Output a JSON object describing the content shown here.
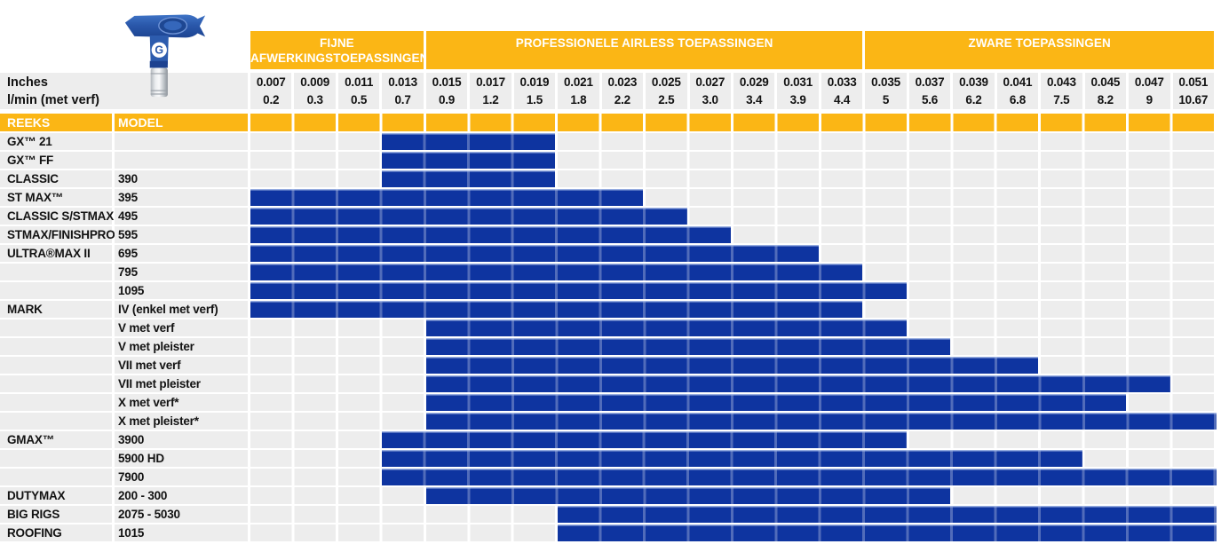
{
  "colors": {
    "accent_orange": "#FBB615",
    "bar_blue": "#0E34A0",
    "row_gray": "#EDEDED",
    "band_text": "#FFFFFF",
    "label_text": "#121212"
  },
  "chart_data": {
    "type": "bar",
    "subtype": "horizontal-range-selection-chart",
    "legend": "none",
    "grid": "column-separators",
    "row_headers": {
      "reeks": "REEKS",
      "model": "MODEL"
    },
    "x_axis": {
      "label_inches": "Inches",
      "label_lmin": "l/min (met verf)",
      "ticks_inches": [
        0.007,
        0.009,
        0.011,
        0.013,
        0.015,
        0.017,
        0.019,
        0.021,
        0.023,
        0.025,
        0.027,
        0.029,
        0.031,
        0.033,
        0.035,
        0.037,
        0.039,
        0.041,
        0.043,
        0.045,
        0.047,
        0.051
      ],
      "ticks_lmin": [
        0.2,
        0.3,
        0.5,
        0.7,
        0.9,
        1.2,
        1.5,
        1.8,
        2.2,
        2.5,
        3.0,
        3.4,
        3.9,
        4.4,
        5,
        5.6,
        6.2,
        6.8,
        7.5,
        8.2,
        9,
        10.67
      ]
    },
    "bands": [
      {
        "label": "FIJNE AFWERKINGSTOEPASSINGEN",
        "cols": [
          0,
          3
        ]
      },
      {
        "label": "PROFESSIONELE AIRLESS TOEPASSINGEN",
        "cols": [
          4,
          13
        ]
      },
      {
        "label": "ZWARE TOEPASSINGEN",
        "cols": [
          14,
          21
        ]
      }
    ],
    "columns": [
      {
        "inches": "0.007",
        "lmin": "0.2"
      },
      {
        "inches": "0.009",
        "lmin": "0.3"
      },
      {
        "inches": "0.011",
        "lmin": "0.5"
      },
      {
        "inches": "0.013",
        "lmin": "0.7"
      },
      {
        "inches": "0.015",
        "lmin": "0.9"
      },
      {
        "inches": "0.017",
        "lmin": "1.2"
      },
      {
        "inches": "0.019",
        "lmin": "1.5"
      },
      {
        "inches": "0.021",
        "lmin": "1.8"
      },
      {
        "inches": "0.023",
        "lmin": "2.2"
      },
      {
        "inches": "0.025",
        "lmin": "2.5"
      },
      {
        "inches": "0.027",
        "lmin": "3.0"
      },
      {
        "inches": "0.029",
        "lmin": "3.4"
      },
      {
        "inches": "0.031",
        "lmin": "3.9"
      },
      {
        "inches": "0.033",
        "lmin": "4.4"
      },
      {
        "inches": "0.035",
        "lmin": "5"
      },
      {
        "inches": "0.037",
        "lmin": "5.6"
      },
      {
        "inches": "0.039",
        "lmin": "6.2"
      },
      {
        "inches": "0.041",
        "lmin": "6.8"
      },
      {
        "inches": "0.043",
        "lmin": "7.5"
      },
      {
        "inches": "0.045",
        "lmin": "8.2"
      },
      {
        "inches": "0.047",
        "lmin": "9"
      },
      {
        "inches": "0.051",
        "lmin": "10.67"
      }
    ],
    "rows": [
      {
        "reeks": "GX™ 21",
        "model": "",
        "from": "0.013",
        "to": "0.019"
      },
      {
        "reeks": "GX™ FF",
        "model": "",
        "from": "0.013",
        "to": "0.019"
      },
      {
        "reeks": "CLASSIC",
        "model": "390",
        "from": "0.013",
        "to": "0.019"
      },
      {
        "reeks": "ST MAX™",
        "model": "395",
        "from": "0.007",
        "to": "0.023"
      },
      {
        "reeks": "CLASSIC S/STMAX",
        "model": "495",
        "from": "0.007",
        "to": "0.025"
      },
      {
        "reeks": "STMAX/FINISHPRO",
        "model": "595",
        "from": "0.007",
        "to": "0.027"
      },
      {
        "reeks": "ULTRA®MAX II",
        "model": "695",
        "from": "0.007",
        "to": "0.031"
      },
      {
        "reeks": "",
        "model": "795",
        "from": "0.007",
        "to": "0.033"
      },
      {
        "reeks": "",
        "model": "1095",
        "from": "0.007",
        "to": "0.035"
      },
      {
        "reeks": "MARK",
        "model": "IV (enkel met verf)",
        "from": "0.007",
        "to": "0.033"
      },
      {
        "reeks": "",
        "model": "V met verf",
        "from": "0.015",
        "to": "0.035"
      },
      {
        "reeks": "",
        "model": "V met pleister",
        "from": "0.015",
        "to": "0.037"
      },
      {
        "reeks": "",
        "model": "VII met verf",
        "from": "0.015",
        "to": "0.041"
      },
      {
        "reeks": "",
        "model": "VII met pleister",
        "from": "0.015",
        "to": "0.047"
      },
      {
        "reeks": "",
        "model": "X met verf*",
        "from": "0.015",
        "to": "0.045"
      },
      {
        "reeks": "",
        "model": "X met pleister*",
        "from": "0.015",
        "to": "0.051"
      },
      {
        "reeks": "GMAX™",
        "model": "3900",
        "from": "0.013",
        "to": "0.035"
      },
      {
        "reeks": "",
        "model": "5900 HD",
        "from": "0.013",
        "to": "0.043"
      },
      {
        "reeks": "",
        "model": "7900",
        "from": "0.013",
        "to": "0.051"
      },
      {
        "reeks": "DUTYMAX",
        "model": "200 - 300",
        "from": "0.015",
        "to": "0.037"
      },
      {
        "reeks": "BIG RIGS",
        "model": "2075 - 5030",
        "from": "0.021",
        "to": "0.051"
      },
      {
        "reeks": "ROOFING",
        "model": "1015",
        "from": "0.021",
        "to": "0.051"
      }
    ]
  }
}
